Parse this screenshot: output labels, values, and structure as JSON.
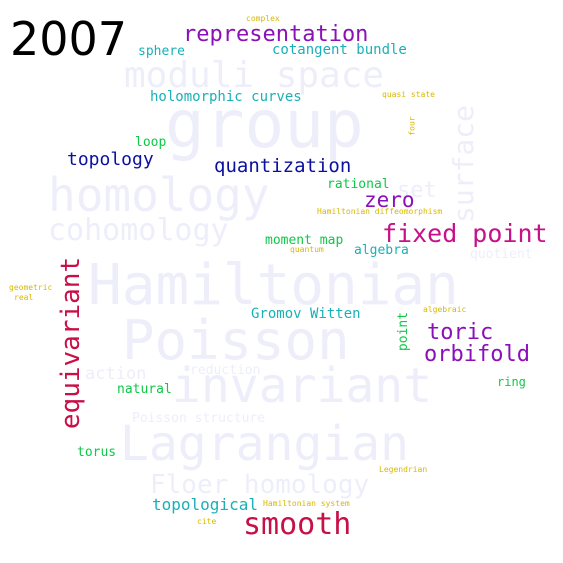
{
  "year": "2007",
  "background_words": {
    "group": "group",
    "moduli_space": "moduli space",
    "homology": "homology",
    "cohomology": "cohomology",
    "hamiltonian": "Hamiltonian",
    "poisson": "Poisson",
    "invariant": "invariant",
    "lagrangian": "Lagrangian",
    "floer_homology": "Floer homology",
    "surface": "surface",
    "set": "set",
    "action": "action",
    "quotient": "quotient",
    "poisson_structure": "Poisson structure",
    "reduction": "reduction"
  },
  "words": {
    "representation": "representation",
    "cotangent_bundle": "cotangent bundle",
    "sphere": "sphere",
    "holomorphic_curves": "holomorphic curves",
    "loop": "loop",
    "topology": "topology",
    "quantization": "quantization",
    "rational": "rational",
    "zero": "zero",
    "fixed_point": "fixed point",
    "hamiltonian_diffeomorphism": "Hamiltonian diffeomorphism",
    "moment_map": "moment map",
    "quantum": "quantum",
    "algebra": "algebra",
    "equivariant": "equivariant",
    "gromov_witten": "Gromov Witten",
    "point": "point",
    "toric": "toric",
    "orbifold": "orbifold",
    "algebraic": "algebraic",
    "ring": "ring",
    "natural": "natural",
    "torus": "torus",
    "legendrian": "Legendrian",
    "topological": "topological",
    "hamiltonian_system": "Hamiltonian system",
    "smooth": "smooth",
    "cite": "cite",
    "complex": "complex",
    "quasi_state": "quasi state",
    "four": "four",
    "geometric": "geometric",
    "real": "real"
  },
  "colors": {
    "year": "#000000",
    "purple": "#8b10b8",
    "teal": "#1ab0b8",
    "navy": "#0a10a0",
    "magenta": "#c8108a",
    "crimson": "#c81048",
    "green": "#10c848",
    "gold": "#d8b800",
    "ghost": "#eeeefb"
  }
}
